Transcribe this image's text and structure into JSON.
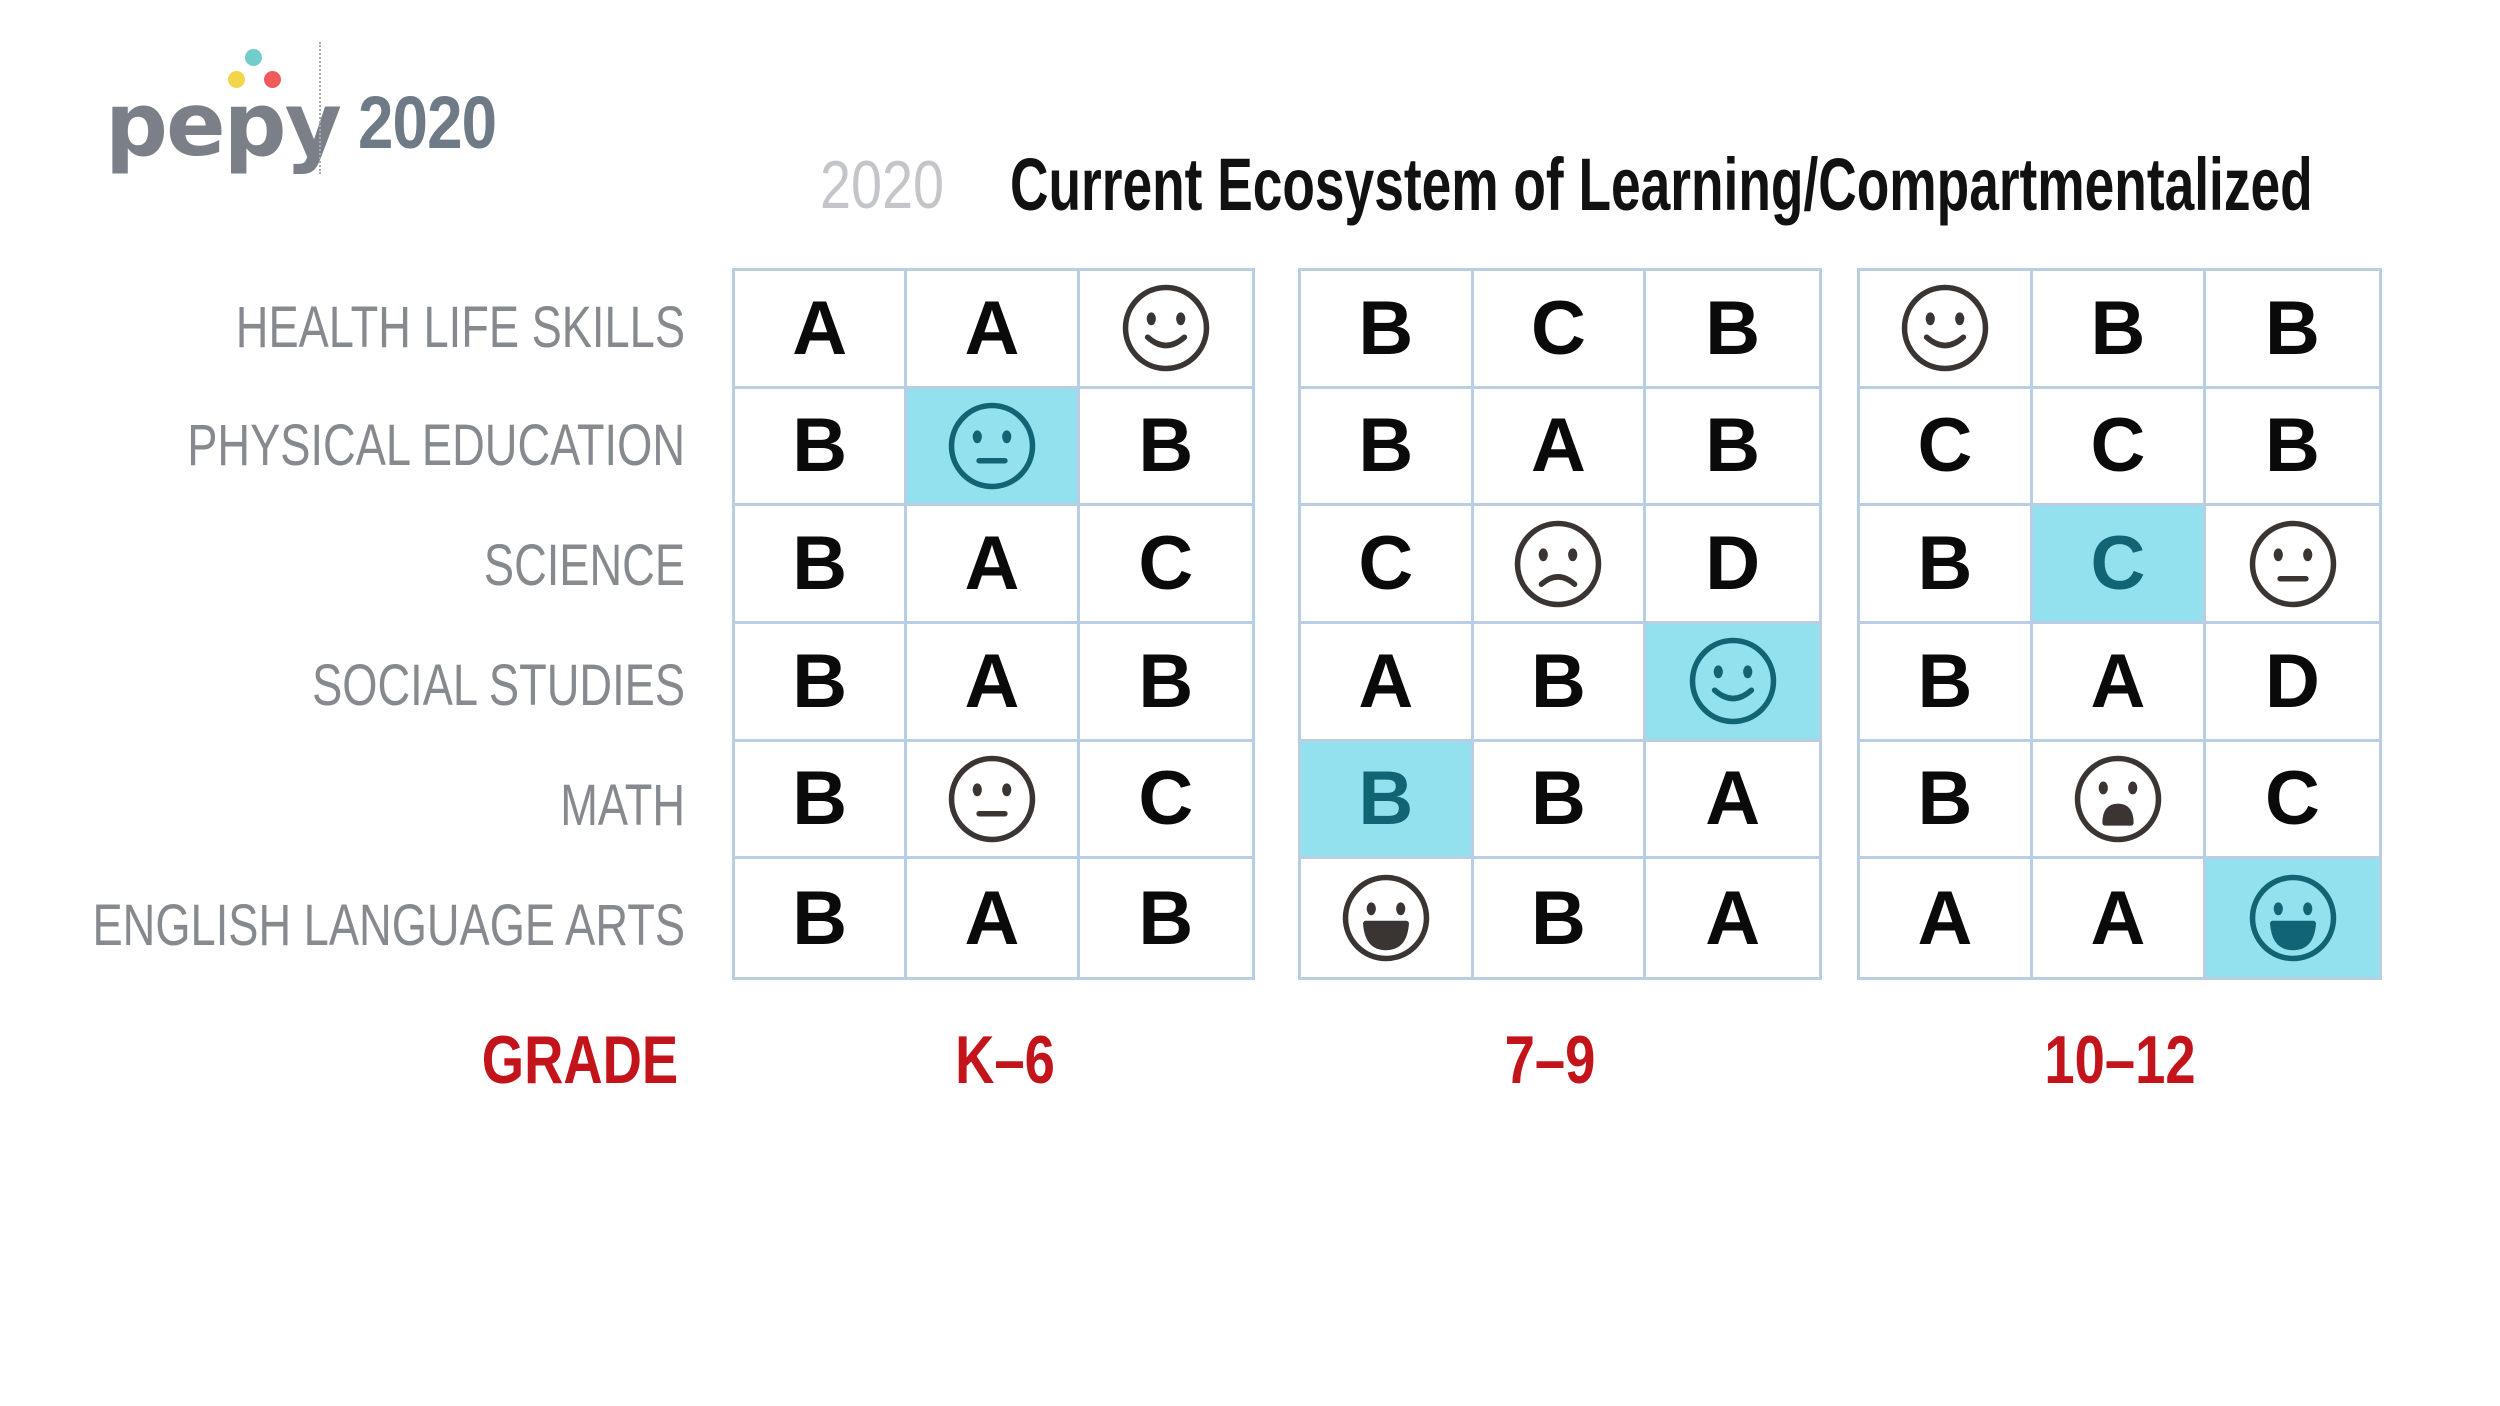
{
  "header": {
    "logo_text": "pepy",
    "brand_year": "2020",
    "title_year": "2020",
    "title": "Current Ecosystem of Learning/Compartmentalized"
  },
  "colors": {
    "highlight": "#93e0ef",
    "grade_red": "#c2141a",
    "grid_line": "#b9cde3",
    "logo_gray": "#7b8088"
  },
  "rows": [
    "HEALTH LIFE SKILLS",
    "PHYSICAL EDUCATION",
    "SCIENCE",
    "SOCIAL STUDIES",
    "MATH",
    "ENGLISH LANGUAGE ARTS"
  ],
  "grade_label": "GRADE",
  "grids": [
    {
      "grade": "K–6",
      "cells": [
        [
          {
            "v": "A"
          },
          {
            "v": "A"
          },
          {
            "face": "smile-icon"
          }
        ],
        [
          {
            "v": "B"
          },
          {
            "face": "neutral-icon",
            "hl": true
          },
          {
            "v": "B"
          }
        ],
        [
          {
            "v": "B"
          },
          {
            "v": "A"
          },
          {
            "v": "C"
          }
        ],
        [
          {
            "v": "B"
          },
          {
            "v": "A"
          },
          {
            "v": "B"
          }
        ],
        [
          {
            "v": "B"
          },
          {
            "face": "neutral-icon"
          },
          {
            "v": "C"
          }
        ],
        [
          {
            "v": "B"
          },
          {
            "v": "A"
          },
          {
            "v": "B"
          }
        ]
      ]
    },
    {
      "grade": "7–9",
      "cells": [
        [
          {
            "v": "B"
          },
          {
            "v": "C"
          },
          {
            "v": "B"
          }
        ],
        [
          {
            "v": "B"
          },
          {
            "v": "A"
          },
          {
            "v": "B"
          }
        ],
        [
          {
            "v": "C"
          },
          {
            "face": "frown-icon"
          },
          {
            "v": "D"
          }
        ],
        [
          {
            "v": "A"
          },
          {
            "v": "B"
          },
          {
            "face": "smile-icon",
            "hl": true
          }
        ],
        [
          {
            "v": "B",
            "hl": true
          },
          {
            "v": "B"
          },
          {
            "v": "A"
          }
        ],
        [
          {
            "face": "grin-icon"
          },
          {
            "v": "B"
          },
          {
            "v": "A"
          }
        ]
      ]
    },
    {
      "grade": "10–12",
      "cells": [
        [
          {
            "face": "smile-icon"
          },
          {
            "v": "B"
          },
          {
            "v": "B"
          }
        ],
        [
          {
            "v": "C"
          },
          {
            "v": "C"
          },
          {
            "v": "B"
          }
        ],
        [
          {
            "v": "B"
          },
          {
            "v": "C",
            "hl": true
          },
          {
            "face": "neutral-icon"
          }
        ],
        [
          {
            "v": "B"
          },
          {
            "v": "A"
          },
          {
            "v": "D"
          }
        ],
        [
          {
            "v": "B"
          },
          {
            "face": "shocked-icon"
          },
          {
            "v": "C"
          }
        ],
        [
          {
            "v": "A"
          },
          {
            "v": "A"
          },
          {
            "face": "grin-icon",
            "hl": true
          }
        ]
      ]
    }
  ]
}
